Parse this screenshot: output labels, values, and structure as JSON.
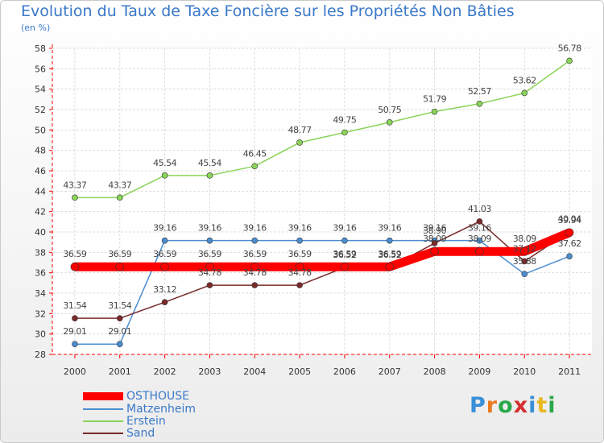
{
  "title": "Evolution du Taux de Taxe Foncière sur les Propriétés Non Bâties",
  "subtitle": "(en %)",
  "logo": {
    "text": "Proxiti",
    "colors": [
      "#3a8fd8",
      "#e87a1e",
      "#2aa84a",
      "#d62e2e",
      "#3a8fd8",
      "#e8b81e",
      "#2aa84a"
    ]
  },
  "chart_data": {
    "type": "line",
    "categories": [
      "2000",
      "2001",
      "2002",
      "2003",
      "2004",
      "2005",
      "2006",
      "2007",
      "2008",
      "2009",
      "2010",
      "2011"
    ],
    "ylim": [
      28,
      58
    ],
    "yticks": [
      "28",
      "30",
      "32",
      "34",
      "36",
      "38",
      "40",
      "42",
      "44",
      "46",
      "48",
      "50",
      "52",
      "54",
      "56",
      "58"
    ],
    "grid": true,
    "series": [
      {
        "name": "OSTHOUSE",
        "color": "#ff0000",
        "values": [
          36.59,
          36.59,
          36.59,
          36.59,
          36.59,
          36.59,
          36.59,
          36.59,
          38.09,
          38.09,
          38.09,
          39.94
        ],
        "labels": [
          "36.59",
          "36.59",
          "36.59",
          "36.59",
          "36.59",
          "36.59",
          "36.59",
          "36.59",
          "38.09",
          "38.09",
          "38.09",
          "39.94"
        ]
      },
      {
        "name": "Matzenheim",
        "color": "#4b8ed0",
        "values": [
          29.01,
          29.01,
          39.16,
          39.16,
          39.16,
          39.16,
          39.16,
          39.16,
          39.16,
          39.16,
          35.88,
          37.62
        ],
        "labels": [
          "29.01",
          "29.01",
          "39.16",
          "39.16",
          "39.16",
          "39.16",
          "39.16",
          "39.16",
          "39.16",
          "39.16",
          "35.88",
          "37.62"
        ]
      },
      {
        "name": "Erstein",
        "color": "#8bd45a",
        "values": [
          43.37,
          43.37,
          45.54,
          45.54,
          46.45,
          48.77,
          49.75,
          50.75,
          51.79,
          52.57,
          53.62,
          56.78
        ],
        "labels": [
          "43.37",
          "43.37",
          "45.54",
          "45.54",
          "46.45",
          "48.77",
          "49.75",
          "50.75",
          "51.79",
          "52.57",
          "53.62",
          "56.78"
        ]
      },
      {
        "name": "Sand",
        "color": "#7a2a2a",
        "values": [
          31.54,
          31.54,
          33.12,
          34.78,
          34.78,
          34.78,
          36.52,
          36.52,
          38.9,
          41.03,
          37.12,
          40.04
        ],
        "labels": [
          "31.54",
          "31.54",
          "33.12",
          "34.78",
          "34.78",
          "34.78",
          "36.52",
          "36.52",
          "38.90",
          "41.03",
          "37.12",
          "40.04"
        ]
      }
    ]
  }
}
